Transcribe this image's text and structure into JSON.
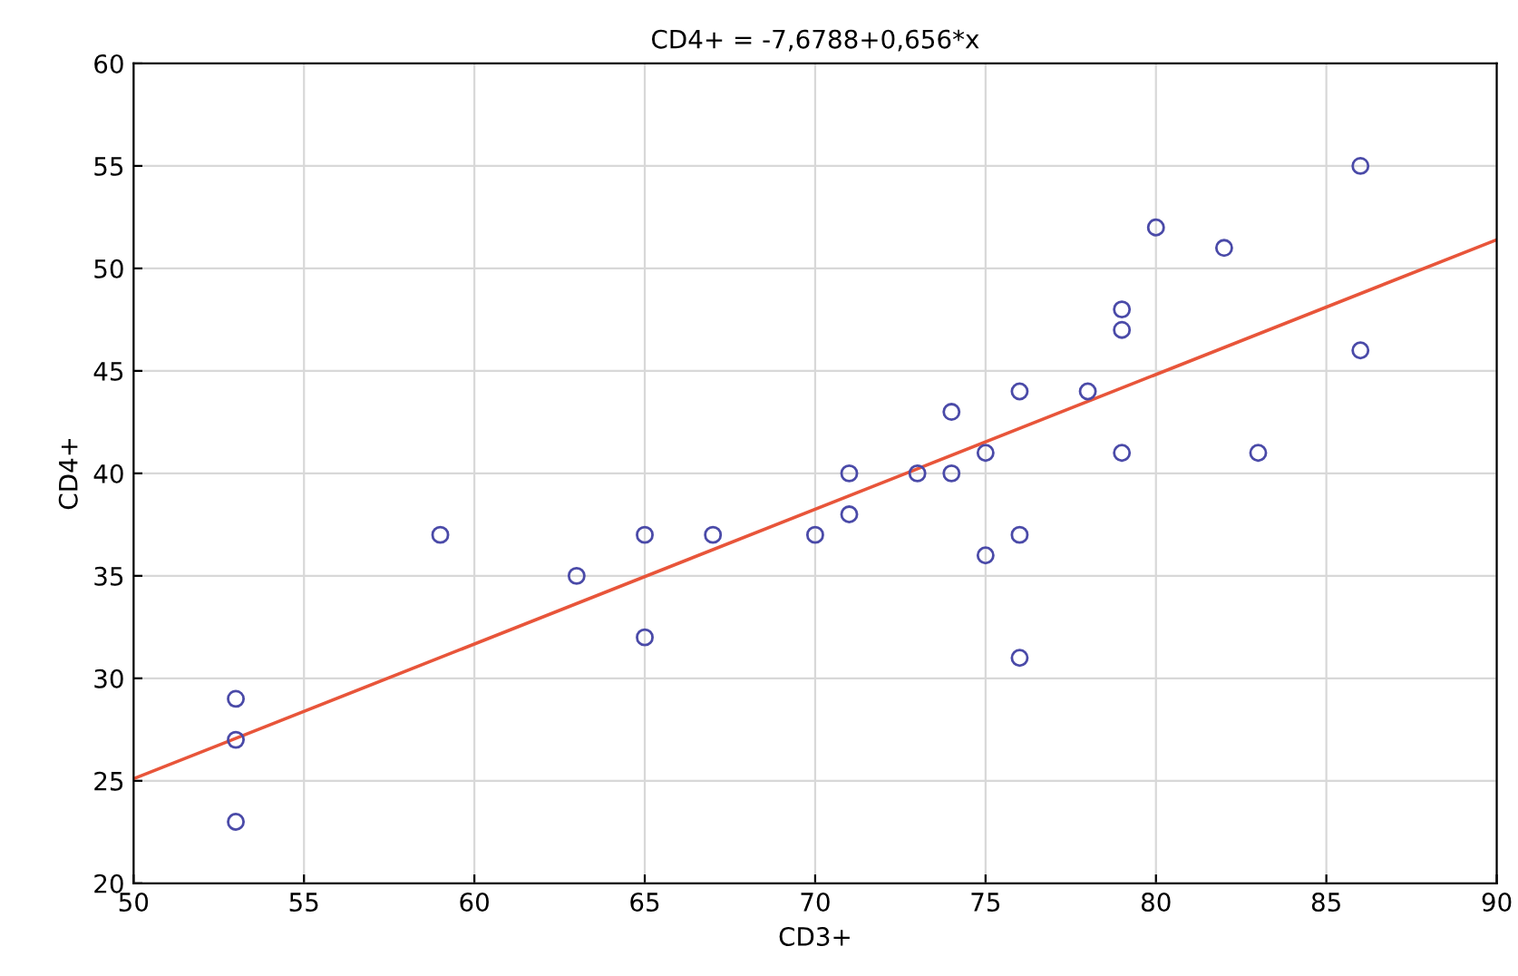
{
  "chart_data": {
    "type": "scatter",
    "title": "CD4+ = -7,6788+0,656*x",
    "xlabel": "CD3+",
    "ylabel": "CD4+",
    "xlim": [
      50,
      90
    ],
    "xticks": [
      50,
      55,
      60,
      65,
      70,
      75,
      80,
      85,
      90
    ],
    "ylim": [
      20,
      60
    ],
    "yticks": [
      20,
      25,
      30,
      35,
      40,
      45,
      50,
      55,
      60
    ],
    "grid": true,
    "series": [
      {
        "marker": "circle",
        "color": "#4a4aa8",
        "x": [
          53,
          53,
          53,
          59,
          63,
          65,
          65,
          67,
          70,
          71,
          71,
          73,
          74,
          74,
          75,
          75,
          76,
          76,
          76,
          78,
          79,
          79,
          79,
          80,
          82,
          83,
          86,
          86
        ],
        "values": [
          29,
          27,
          23,
          37,
          35,
          37,
          32,
          37,
          37,
          40,
          38,
          40,
          43,
          40,
          41,
          36,
          44,
          37,
          31,
          44,
          48,
          47,
          41,
          52,
          51,
          41,
          55,
          46
        ]
      },
      {
        "type": "line",
        "color": "#e8553a",
        "line_style": "solid",
        "x": [
          50,
          90
        ],
        "values": [
          25.1,
          51.4
        ]
      }
    ]
  }
}
